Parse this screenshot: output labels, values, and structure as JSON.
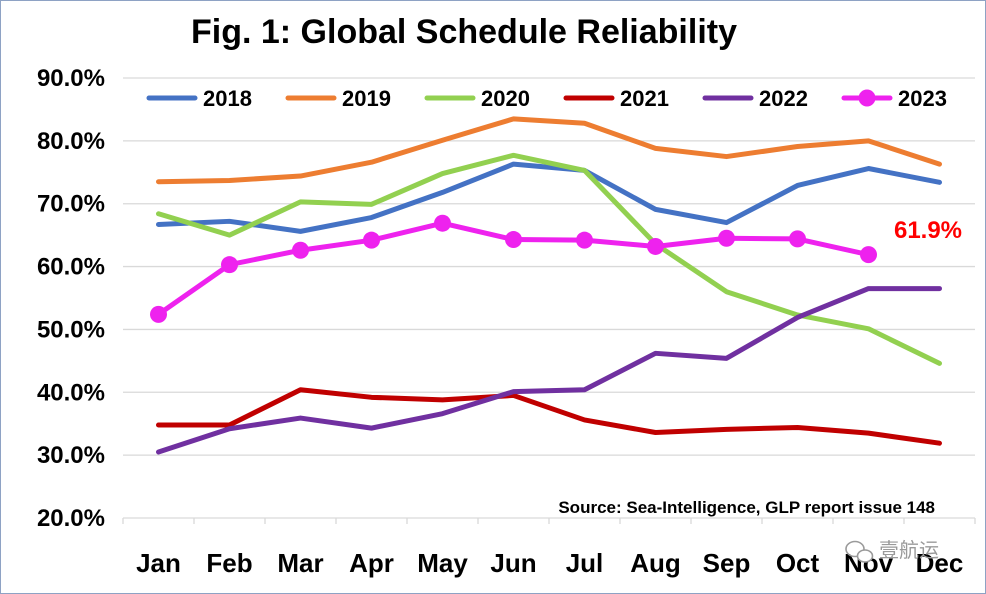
{
  "chart_data": {
    "type": "line",
    "title": "Fig. 1: Global Schedule Reliability",
    "xlabel": "",
    "ylabel": "",
    "categories": [
      "Jan",
      "Feb",
      "Mar",
      "Apr",
      "May",
      "Jun",
      "Jul",
      "Aug",
      "Sep",
      "Oct",
      "Nov",
      "Dec"
    ],
    "ylim": [
      20,
      90
    ],
    "yticks": [
      20,
      30,
      40,
      50,
      60,
      70,
      80,
      90
    ],
    "ytick_labels": [
      "20.0%",
      "30.0%",
      "40.0%",
      "50.0%",
      "60.0%",
      "70.0%",
      "80.0%",
      "90.0%"
    ],
    "grid": "horizontal",
    "legend_position": "top",
    "series": [
      {
        "name": "2018",
        "color": "#4472c4",
        "marker": "none",
        "values": [
          66.7,
          67.2,
          65.6,
          67.8,
          71.8,
          76.3,
          75.3,
          69.1,
          67.0,
          72.9,
          75.6,
          73.4
        ]
      },
      {
        "name": "2019",
        "color": "#ed7d31",
        "marker": "none",
        "values": [
          73.5,
          73.7,
          74.4,
          76.6,
          80.1,
          83.5,
          82.8,
          78.8,
          77.5,
          79.1,
          80.0,
          76.3
        ]
      },
      {
        "name": "2020",
        "color": "#92d050",
        "marker": "none",
        "values": [
          68.4,
          65.0,
          70.3,
          69.9,
          74.8,
          77.7,
          75.3,
          63.6,
          56.0,
          52.3,
          50.1,
          44.6
        ]
      },
      {
        "name": "2021",
        "color": "#c00000",
        "marker": "none",
        "values": [
          34.8,
          34.8,
          40.4,
          39.2,
          38.8,
          39.5,
          35.6,
          33.6,
          34.1,
          34.4,
          33.5,
          31.9
        ]
      },
      {
        "name": "2022",
        "color": "#7030a0",
        "marker": "none",
        "values": [
          30.5,
          34.2,
          35.9,
          34.3,
          36.6,
          40.1,
          40.4,
          46.2,
          45.4,
          51.9,
          56.5,
          56.5
        ]
      },
      {
        "name": "2023",
        "color": "#ee22ee",
        "marker": "circle",
        "values": [
          52.4,
          60.3,
          62.6,
          64.2,
          66.9,
          64.3,
          64.2,
          63.2,
          64.5,
          64.4,
          61.9,
          null
        ]
      }
    ],
    "annotations": [
      {
        "text": "61.9%",
        "color": "#ff0000",
        "near_series": "2023",
        "near_category": "Nov"
      },
      {
        "text": "Source: Sea-Intelligence, GLP report issue 148",
        "color": "#000000",
        "position": "bottom-right"
      }
    ]
  },
  "watermark": {
    "text": "壹航运",
    "icon": "wechat-icon"
  }
}
